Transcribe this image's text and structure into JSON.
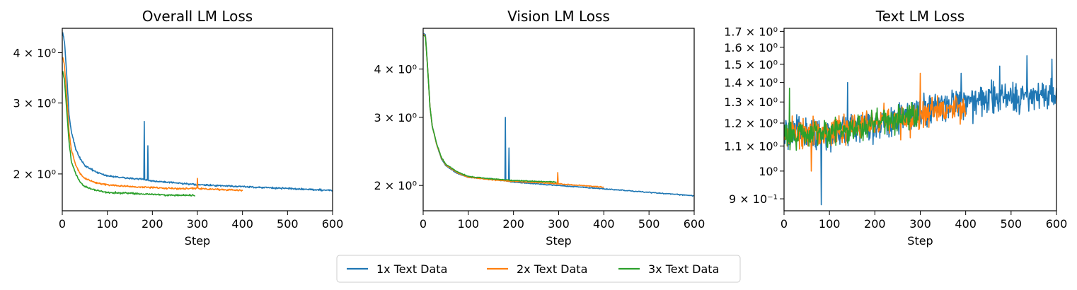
{
  "chart_data": [
    {
      "type": "line",
      "title": "Overall LM Loss",
      "xlabel": "Step",
      "ylabel": "",
      "xlim": [
        0,
        600
      ],
      "ylim": [
        1.62,
        4.6
      ],
      "yscale": "log",
      "xticks": [
        0,
        100,
        200,
        300,
        400,
        500,
        600
      ],
      "yticks": [
        {
          "value": 2,
          "label": "2 × 10⁰"
        },
        {
          "value": 3,
          "label": "3 × 10⁰"
        },
        {
          "value": 4,
          "label": "4 × 10⁰"
        }
      ],
      "series": [
        {
          "name": "1x Text Data",
          "color": "#1f77b4",
          "noise": 0.007,
          "spikes": [
            [
              182,
              2.7
            ],
            [
              190,
              2.35
            ]
          ],
          "points": [
            [
              1,
              4.5
            ],
            [
              5,
              4.25
            ],
            [
              10,
              3.5
            ],
            [
              15,
              2.8
            ],
            [
              20,
              2.55
            ],
            [
              30,
              2.3
            ],
            [
              40,
              2.18
            ],
            [
              50,
              2.1
            ],
            [
              75,
              2.02
            ],
            [
              100,
              1.98
            ],
            [
              150,
              1.95
            ],
            [
              180,
              1.94
            ],
            [
              200,
              1.92
            ],
            [
              250,
              1.9
            ],
            [
              300,
              1.88
            ],
            [
              400,
              1.86
            ],
            [
              500,
              1.84
            ],
            [
              600,
              1.82
            ]
          ]
        },
        {
          "name": "2x Text Data",
          "color": "#ff7f0e",
          "noise": 0.007,
          "spikes": [
            [
              300,
              1.95
            ]
          ],
          "points": [
            [
              1,
              3.9
            ],
            [
              5,
              3.7
            ],
            [
              10,
              3.1
            ],
            [
              15,
              2.55
            ],
            [
              20,
              2.3
            ],
            [
              30,
              2.1
            ],
            [
              40,
              2.0
            ],
            [
              50,
              1.95
            ],
            [
              75,
              1.9
            ],
            [
              100,
              1.88
            ],
            [
              150,
              1.86
            ],
            [
              200,
              1.85
            ],
            [
              250,
              1.84
            ],
            [
              300,
              1.84
            ],
            [
              350,
              1.83
            ],
            [
              400,
              1.82
            ]
          ]
        },
        {
          "name": "3x Text Data",
          "color": "#2ca02c",
          "noise": 0.007,
          "spikes": [],
          "points": [
            [
              1,
              3.6
            ],
            [
              5,
              3.4
            ],
            [
              10,
              2.85
            ],
            [
              15,
              2.4
            ],
            [
              20,
              2.15
            ],
            [
              30,
              2.0
            ],
            [
              40,
              1.9
            ],
            [
              50,
              1.86
            ],
            [
              75,
              1.82
            ],
            [
              100,
              1.8
            ],
            [
              150,
              1.79
            ],
            [
              200,
              1.78
            ],
            [
              250,
              1.77
            ],
            [
              295,
              1.77
            ]
          ]
        }
      ]
    },
    {
      "type": "line",
      "title": "Vision LM Loss",
      "xlabel": "Step",
      "ylabel": "",
      "xlim": [
        0,
        600
      ],
      "ylim": [
        1.72,
        5.1
      ],
      "yscale": "log",
      "xticks": [
        0,
        100,
        200,
        300,
        400,
        500,
        600
      ],
      "yticks": [
        {
          "value": 2,
          "label": "2 × 10⁰"
        },
        {
          "value": 3,
          "label": "3 × 10⁰"
        },
        {
          "value": 4,
          "label": "4 × 10⁰"
        }
      ],
      "series": [
        {
          "name": "1x Text Data",
          "color": "#1f77b4",
          "noise": 0.004,
          "spikes": [
            [
              182,
              3.0
            ],
            [
              190,
              2.5
            ]
          ],
          "points": [
            [
              1,
              4.95
            ],
            [
              5,
              4.9
            ],
            [
              10,
              4.0
            ],
            [
              15,
              3.2
            ],
            [
              20,
              2.85
            ],
            [
              30,
              2.55
            ],
            [
              40,
              2.35
            ],
            [
              50,
              2.25
            ],
            [
              75,
              2.15
            ],
            [
              100,
              2.1
            ],
            [
              150,
              2.08
            ],
            [
              200,
              2.04
            ],
            [
              300,
              2.0
            ],
            [
              400,
              1.96
            ],
            [
              500,
              1.92
            ],
            [
              600,
              1.88
            ]
          ]
        },
        {
          "name": "2x Text Data",
          "color": "#ff7f0e",
          "noise": 0.004,
          "spikes": [
            [
              298,
              2.16
            ]
          ],
          "points": [
            [
              1,
              4.92
            ],
            [
              5,
              4.85
            ],
            [
              10,
              4.0
            ],
            [
              15,
              3.2
            ],
            [
              20,
              2.85
            ],
            [
              30,
              2.55
            ],
            [
              40,
              2.36
            ],
            [
              50,
              2.26
            ],
            [
              75,
              2.16
            ],
            [
              100,
              2.1
            ],
            [
              150,
              2.07
            ],
            [
              200,
              2.05
            ],
            [
              300,
              2.02
            ],
            [
              400,
              1.98
            ]
          ]
        },
        {
          "name": "3x Text Data",
          "color": "#2ca02c",
          "noise": 0.004,
          "spikes": [],
          "points": [
            [
              1,
              4.9
            ],
            [
              5,
              4.85
            ],
            [
              10,
              4.0
            ],
            [
              15,
              3.2
            ],
            [
              20,
              2.85
            ],
            [
              30,
              2.56
            ],
            [
              40,
              2.37
            ],
            [
              50,
              2.27
            ],
            [
              75,
              2.17
            ],
            [
              100,
              2.11
            ],
            [
              150,
              2.08
            ],
            [
              200,
              2.06
            ],
            [
              250,
              2.05
            ],
            [
              295,
              2.04
            ]
          ]
        }
      ]
    },
    {
      "type": "line",
      "title": "Text LM Loss",
      "xlabel": "Step",
      "ylabel": "",
      "xlim": [
        0,
        600
      ],
      "ylim": [
        0.86,
        1.72
      ],
      "yscale": "log",
      "xticks": [
        0,
        100,
        200,
        300,
        400,
        500,
        600
      ],
      "yticks": [
        {
          "value": 0.9,
          "label": "9 × 10⁻¹"
        },
        {
          "value": 1.0,
          "label": "10⁰"
        },
        {
          "value": 1.1,
          "label": "1.1 × 10⁰"
        },
        {
          "value": 1.2,
          "label": "1.2 × 10⁰"
        },
        {
          "value": 1.3,
          "label": "1.3 × 10⁰"
        },
        {
          "value": 1.4,
          "label": "1.4 × 10⁰"
        },
        {
          "value": 1.5,
          "label": "1.5 × 10⁰"
        },
        {
          "value": 1.6,
          "label": "1.6 × 10⁰"
        },
        {
          "value": 1.7,
          "label": "1.7 × 10⁰"
        }
      ],
      "series": [
        {
          "name": "1x Text Data",
          "color": "#1f77b4",
          "noise": 0.09,
          "spikes": [
            [
              82,
              0.88
            ],
            [
              390,
              1.45
            ],
            [
              475,
              1.49
            ],
            [
              535,
              1.55
            ],
            [
              590,
              1.53
            ],
            [
              140,
              1.4
            ]
          ],
          "points": [
            [
              1,
              1.15
            ],
            [
              100,
              1.15
            ],
            [
              200,
              1.2
            ],
            [
              300,
              1.25
            ],
            [
              400,
              1.3
            ],
            [
              500,
              1.32
            ],
            [
              600,
              1.34
            ]
          ]
        },
        {
          "name": "2x Text Data",
          "color": "#ff7f0e",
          "noise": 0.085,
          "spikes": [
            [
              300,
              1.45
            ],
            [
              60,
              1.0
            ]
          ],
          "points": [
            [
              1,
              1.15
            ],
            [
              100,
              1.16
            ],
            [
              200,
              1.2
            ],
            [
              300,
              1.24
            ],
            [
              400,
              1.27
            ]
          ]
        },
        {
          "name": "3x Text Data",
          "color": "#2ca02c",
          "noise": 0.07,
          "spikes": [
            [
              12,
              1.37
            ]
          ],
          "points": [
            [
              1,
              1.15
            ],
            [
              100,
              1.16
            ],
            [
              200,
              1.2
            ],
            [
              295,
              1.24
            ]
          ]
        }
      ]
    }
  ],
  "legend": {
    "placement": "bottom-center",
    "entries": [
      {
        "label": "1x Text Data",
        "color": "#1f77b4"
      },
      {
        "label": "2x Text Data",
        "color": "#ff7f0e"
      },
      {
        "label": "3x Text Data",
        "color": "#2ca02c"
      }
    ]
  }
}
